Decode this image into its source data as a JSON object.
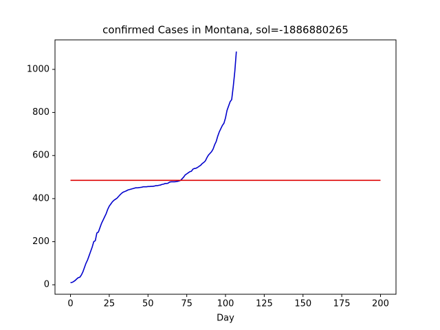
{
  "chart_data": {
    "type": "line",
    "title": "confirmed Cases in Montana, sol=-1886880265",
    "x_label": "Day",
    "xlim": [
      -10,
      210
    ],
    "ylim": [
      -44,
      1137
    ],
    "xticks": [
      0,
      25,
      50,
      75,
      100,
      125,
      150,
      175,
      200
    ],
    "yticks": [
      0,
      200,
      400,
      600,
      800,
      1000
    ],
    "grid": false,
    "series": [
      {
        "color": "#0000cc",
        "x": [
          0,
          1,
          2,
          3,
          4,
          5,
          6,
          7,
          8,
          9,
          10,
          11,
          12,
          13,
          14,
          15,
          16,
          17,
          18,
          19,
          20,
          21,
          22,
          23,
          24,
          25,
          26,
          27,
          28,
          29,
          30,
          31,
          32,
          33,
          34,
          35,
          36,
          37,
          38,
          39,
          40,
          41,
          42,
          43,
          44,
          45,
          46,
          47,
          48,
          49,
          50,
          51,
          52,
          53,
          54,
          55,
          56,
          57,
          58,
          59,
          60,
          61,
          62,
          63,
          64,
          65,
          66,
          67,
          68,
          69,
          70,
          71,
          72,
          73,
          74,
          75,
          76,
          77,
          78,
          79,
          80,
          81,
          82,
          83,
          84,
          85,
          86,
          87,
          88,
          89,
          90,
          91,
          92,
          93,
          94,
          95,
          96,
          97,
          98,
          99,
          100,
          101,
          102,
          103,
          104,
          105,
          106,
          107
        ],
        "values": [
          10,
          11,
          15,
          20,
          27,
          33,
          35,
          45,
          60,
          80,
          100,
          115,
          135,
          155,
          175,
          200,
          205,
          240,
          245,
          265,
          285,
          300,
          315,
          330,
          350,
          365,
          375,
          385,
          392,
          397,
          402,
          410,
          418,
          425,
          430,
          433,
          436,
          440,
          442,
          444,
          446,
          448,
          450,
          450,
          451,
          452,
          453,
          455,
          455,
          455,
          456,
          456,
          457,
          457,
          458,
          460,
          460,
          462,
          463,
          466,
          467,
          470,
          470,
          472,
          477,
          478,
          478,
          478,
          479,
          480,
          482,
          485,
          492,
          500,
          510,
          515,
          520,
          525,
          527,
          537,
          540,
          541,
          545,
          550,
          555,
          563,
          568,
          575,
          590,
          602,
          610,
          618,
          630,
          650,
          665,
          690,
          710,
          725,
          740,
          750,
          775,
          810,
          830,
          850,
          860,
          920,
          990,
          1083
        ]
      },
      {
        "color": "#dd0000",
        "x": [
          0,
          200
        ],
        "values": [
          485,
          485
        ]
      }
    ]
  }
}
